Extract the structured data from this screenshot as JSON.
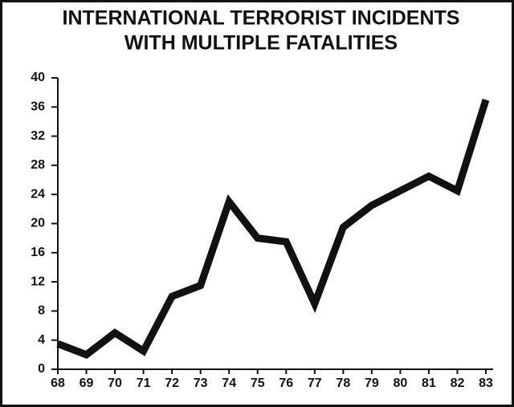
{
  "chart_data": {
    "type": "line",
    "title": [
      "INTERNATIONAL TERRORIST INCIDENTS",
      "WITH MULTIPLE FATALITIES"
    ],
    "categories": [
      "68",
      "69",
      "70",
      "71",
      "72",
      "73",
      "74",
      "75",
      "76",
      "77",
      "78",
      "79",
      "80",
      "81",
      "82",
      "83"
    ],
    "values": [
      3.5,
      2,
      5,
      2.5,
      10,
      11.5,
      23,
      18,
      17.5,
      9,
      19.5,
      22.5,
      24.5,
      26.5,
      24.5,
      37
    ],
    "color": "#111111",
    "ylim": [
      0,
      40
    ],
    "yticks": [
      0,
      4,
      8,
      12,
      16,
      20,
      24,
      28,
      32,
      36,
      40
    ]
  }
}
